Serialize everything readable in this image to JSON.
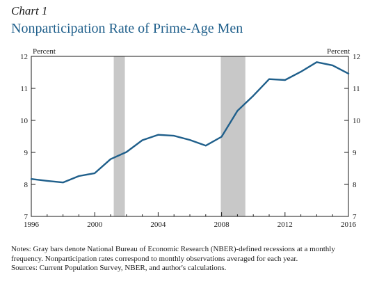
{
  "header": {
    "chart_number": "Chart 1",
    "title": "Nonparticipation Rate of Prime-Age Men"
  },
  "notes": {
    "line1": "Notes: Gray bars denote National Bureau of Economic Research (NBER)-defined recessions at a monthly",
    "line2": "frequency. Nonparticipation rates correspond to monthly observations averaged for each year.",
    "line3": "Sources: Current Population Survey, NBER, and author's calculations."
  },
  "colors": {
    "line": "#1f5f8b",
    "recession": "#c8c8c8",
    "title": "#1f5f8b"
  },
  "chart_data": {
    "type": "line",
    "title": "Nonparticipation Rate of Prime-Age Men",
    "ylabel_left": "Percent",
    "ylabel_right": "Percent",
    "xlim": [
      1996,
      2016
    ],
    "ylim": [
      7,
      12
    ],
    "x_ticks": [
      1996,
      2000,
      2004,
      2008,
      2012,
      2016
    ],
    "y_ticks": [
      7,
      8,
      9,
      10,
      11,
      12
    ],
    "grid": false,
    "recessions": [
      [
        2001.2,
        2001.9
      ],
      [
        2007.95,
        2009.5
      ]
    ],
    "series": [
      {
        "x": [
          1996,
          1997,
          1998,
          1999,
          2000,
          2001,
          2002,
          2003,
          2004,
          2005,
          2006,
          2007,
          2008,
          2009,
          2010,
          2011,
          2012,
          2013,
          2014,
          2015,
          2016
        ],
        "values": [
          8.17,
          8.11,
          8.06,
          8.26,
          8.35,
          8.79,
          9.01,
          9.38,
          9.55,
          9.52,
          9.39,
          9.21,
          9.49,
          10.3,
          10.77,
          11.29,
          11.26,
          11.52,
          11.82,
          11.72,
          11.46
        ]
      }
    ]
  }
}
